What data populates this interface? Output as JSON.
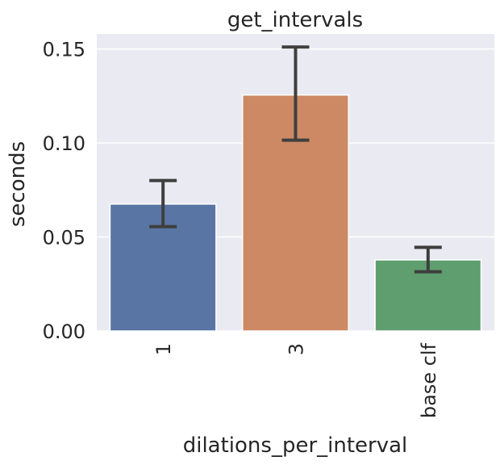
{
  "chart_data": {
    "type": "bar",
    "title": "get_intervals",
    "xlabel": "dilations_per_interval",
    "ylabel": "seconds",
    "categories": [
      "1",
      "3",
      "base clf"
    ],
    "values": [
      0.0675,
      0.1255,
      0.0378
    ],
    "error_low": [
      0.0555,
      0.1015,
      0.0315
    ],
    "error_high": [
      0.08,
      0.151,
      0.0445
    ],
    "colors": [
      "#5875a4",
      "#cc8963",
      "#5f9e6e"
    ],
    "ylim": [
      0,
      0.158
    ],
    "yticks": [
      "0.00",
      "0.05",
      "0.10",
      "0.15"
    ],
    "grid": true,
    "background": "#eaeaf2"
  }
}
